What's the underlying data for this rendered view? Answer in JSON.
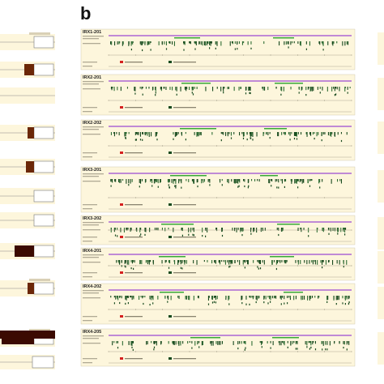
{
  "panel_letter": "b",
  "colors": {
    "background": "#fdf6dc",
    "panel_border": "#c9c1a3",
    "purple_bar": "#c08ad6",
    "green_bar": "#38a838",
    "variant_dark": "#184a1e",
    "variant_mid": "#2f6d34",
    "exon_dark": "#3b0a02",
    "exon_brown": "#6b2708",
    "red_legend": "#d52020"
  },
  "left_strip": [
    {
      "fill": 0,
      "has_box": true
    },
    {
      "fill": 0.3,
      "has_box": true
    },
    {
      "fill": 0,
      "has_box": false
    },
    {
      "fill": 0.2,
      "has_box": true
    },
    {
      "fill": 0.25,
      "has_box": true
    },
    {
      "fill": 0,
      "has_box": true
    },
    {
      "fill": 0,
      "has_box": true
    },
    {
      "fill": 0.6,
      "has_box": true
    },
    {
      "fill": 0.2,
      "has_box": true
    },
    {
      "fill": 1.0,
      "has_box": true
    }
  ],
  "tracks": [
    {
      "name": "IRX1-201"
    },
    {
      "name": "IRX2-201"
    },
    {
      "name": "IRX2-202"
    },
    {
      "name": "IRX3-201"
    },
    {
      "name": "IRX3-202"
    },
    {
      "name": "IRX4-201"
    },
    {
      "name": "IRX4-202"
    },
    {
      "name": "IRX4-205"
    }
  ]
}
